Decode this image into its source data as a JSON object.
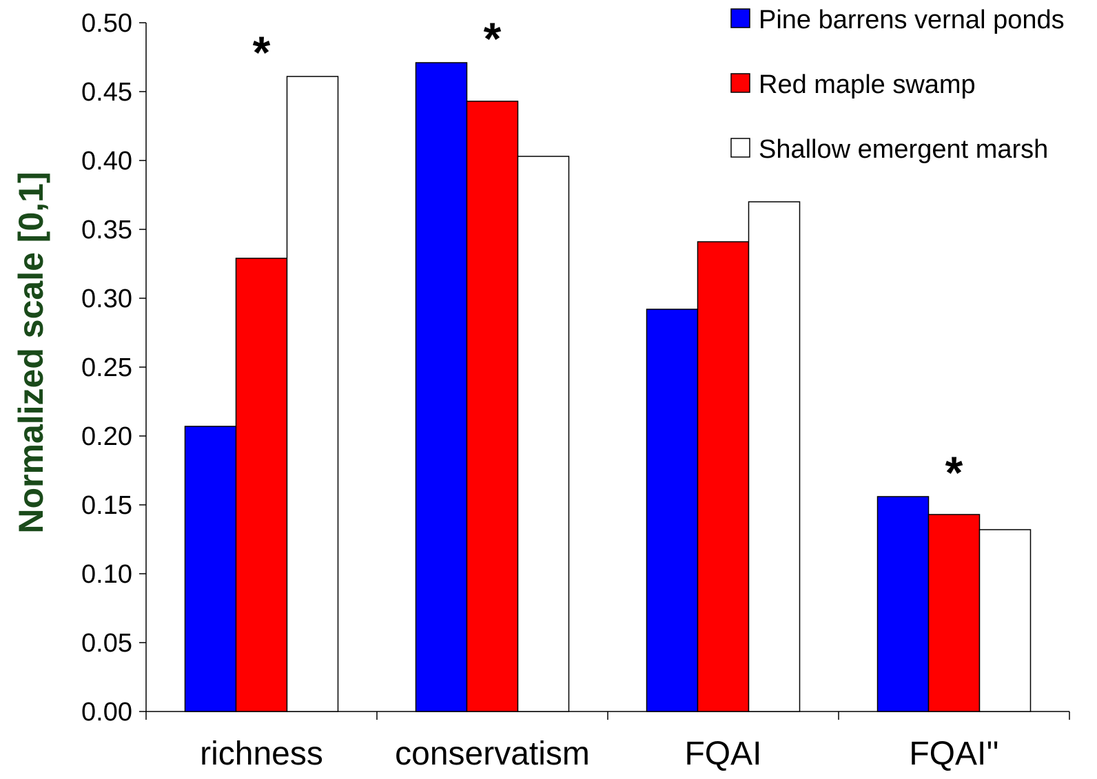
{
  "chart_data": {
    "type": "bar",
    "ylabel": "Normalized scale [0,1]",
    "xlabel": "",
    "ylim": [
      0,
      0.5
    ],
    "yticks": [
      "0.00",
      "0.05",
      "0.10",
      "0.15",
      "0.20",
      "0.25",
      "0.30",
      "0.35",
      "0.40",
      "0.45",
      "0.50"
    ],
    "categories": [
      "richness",
      "conservatism",
      "FQAI",
      "FQAI''"
    ],
    "series": [
      {
        "name": "Pine barrens vernal ponds",
        "color": "#0000ff",
        "values": [
          0.207,
          0.471,
          0.292,
          0.156
        ]
      },
      {
        "name": "Red maple swamp",
        "color": "#ff0000",
        "values": [
          0.329,
          0.443,
          0.341,
          0.143
        ]
      },
      {
        "name": "Shallow emergent marsh",
        "color": "#ffffff",
        "values": [
          0.461,
          0.403,
          0.37,
          0.132
        ]
      }
    ],
    "significance_markers": [
      "*",
      "*",
      "",
      "*"
    ],
    "legend_position": "top-right",
    "grid": false,
    "ylabel_color": "#1a4a1a"
  }
}
